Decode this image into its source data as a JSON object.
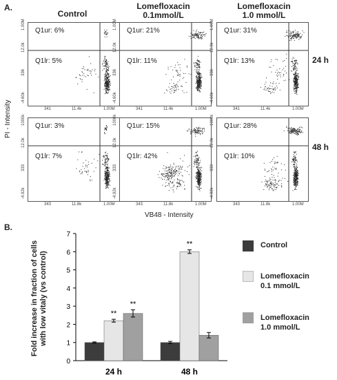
{
  "panel_a": {
    "letter": "A.",
    "columns": [
      "Control",
      "Lomefloxacin\n0.1mmol/L",
      "Lomefloxacin\n1.0 mmol/L"
    ],
    "rows": [
      "24 h",
      "48 h"
    ],
    "xaxis_title": "VB48 - Intensity",
    "yaxis_title": "PI - Intensity",
    "grid": [
      [
        {
          "ur": "Q1ur: 6%",
          "lr": "Q1lr: 5%",
          "xt": [
            "341",
            "11.4k",
            "1.00M"
          ],
          "yt": [
            "-4.60k",
            "336",
            "12.0k",
            "1.00M"
          ]
        },
        {
          "ur": "Q1ur: 21%",
          "lr": "Q1lr: 11%",
          "xt": [
            "341",
            "11.4k",
            "1.00M"
          ],
          "yt": [
            "-4.60k",
            "336",
            "12.0k",
            "1.00M"
          ]
        },
        {
          "ur": "Q1ur: 31%",
          "lr": "Q1lr: 13%",
          "xt": [
            "341",
            "11.4k",
            "1.00M"
          ],
          "yt": [
            "-4.60k",
            "336",
            "12.0k",
            "1.00M"
          ]
        }
      ],
      [
        {
          "ur": "Q1ur: 3%",
          "lr": "Q1lr: 7%",
          "xt": [
            "343",
            "11.8k",
            "1.00M"
          ],
          "yt": [
            "-4.92k",
            "333",
            "12.0k",
            "1000k"
          ]
        },
        {
          "ur": "Q1ur: 15%",
          "lr": "Q1lr: 42%",
          "xt": [
            "343",
            "11.8k",
            "1.00M"
          ],
          "yt": [
            "-4.92k",
            "333",
            "12.0k",
            "1000k"
          ]
        },
        {
          "ur": "Q1ur: 28%",
          "lr": "Q1lr: 10%",
          "xt": [
            "343",
            "11.8k",
            "1.00M"
          ],
          "yt": [
            "-4.92k",
            "333",
            "12.0k",
            "1000k"
          ]
        }
      ]
    ]
  },
  "panel_b": {
    "letter": "B.",
    "legend": [
      {
        "label": "Control",
        "color": "#3c3c3c"
      },
      {
        "label": "Lomefloxacin\n0.1 mmol/L",
        "color": "#e6e6e6"
      },
      {
        "label": "Lomefloxacin\n1.0 mmol/L",
        "color": "#a0a0a0"
      }
    ]
  },
  "chart_data": {
    "type": "bar",
    "categories": [
      "24 h",
      "48 h"
    ],
    "ylabel": "Fold increase in fraction of cells\nwith low vitaly (vs control)",
    "ylim": [
      0,
      7
    ],
    "yticks": [
      "0",
      "1",
      "2",
      "3",
      "4",
      "5",
      "6",
      "7"
    ],
    "series": [
      {
        "name": "Control",
        "values": [
          1.0,
          1.0
        ],
        "errors": [
          0.03,
          0.06
        ],
        "color": "#3c3c3c",
        "marks": [
          "",
          ""
        ]
      },
      {
        "name": "Lomefloxacin 0.1 mmol/L",
        "values": [
          2.2,
          6.0
        ],
        "errors": [
          0.08,
          0.1
        ],
        "color": "#e6e6e6",
        "marks": [
          "**",
          "**"
        ]
      },
      {
        "name": "Lomefloxacin 1.0 mmol/L",
        "values": [
          2.6,
          1.4
        ],
        "errors": [
          0.2,
          0.15
        ],
        "color": "#a0a0a0",
        "marks": [
          "**",
          ""
        ]
      }
    ]
  }
}
